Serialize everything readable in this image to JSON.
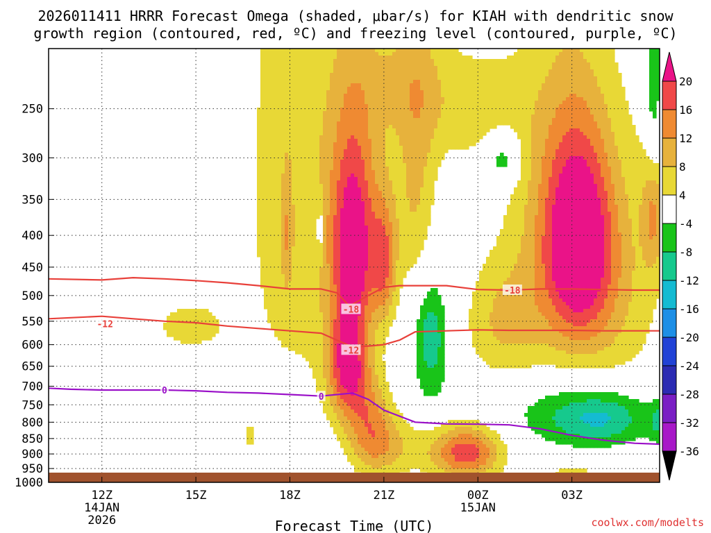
{
  "chart_data": {
    "type": "heatmap",
    "title": "2026011411 HRRR Forecast Omega (shaded, μbar/s) for KIAH with dendritic snow growth region (contoured, red, ºC) and freezing level (contoured, purple, ºC)",
    "title_lines": [
      "2026011411 HRRR Forecast Omega (shaded, μbar/s) for KIAH with dendritic snow",
      "growth region (contoured, red, ºC) and freezing level (contoured, purple, ºC)"
    ],
    "xlabel": "Forecast Time (UTC)",
    "ylabel": "",
    "credit": "coolwx.com/modelts",
    "x_range": [
      10.3,
      29.8
    ],
    "y_range_hPa": [
      200,
      1000
    ],
    "y_ticks": [
      250,
      300,
      350,
      400,
      450,
      500,
      550,
      600,
      650,
      700,
      750,
      800,
      850,
      900,
      950,
      1000
    ],
    "x_ticks": [
      {
        "t": 12,
        "label": "12Z",
        "sub": [
          "14JAN",
          "2026"
        ]
      },
      {
        "t": 15,
        "label": "15Z",
        "sub": []
      },
      {
        "t": 18,
        "label": "18Z",
        "sub": []
      },
      {
        "t": 21,
        "label": "21Z",
        "sub": []
      },
      {
        "t": 24,
        "label": "00Z",
        "sub": [
          "15JAN"
        ]
      },
      {
        "t": 27,
        "label": "03Z",
        "sub": []
      }
    ],
    "colorbar": {
      "labels": [
        "20",
        "16",
        "12",
        "8",
        "4",
        "-4",
        "-8",
        "-12",
        "-16",
        "-20",
        "-24",
        "-28",
        "-32",
        "-36"
      ],
      "colors": [
        "#ea1388",
        "#f04848",
        "#ef8a32",
        "#e7b23c",
        "#e8d836",
        "#ffffff",
        "#19c419",
        "#16c98d",
        "#14bbd2",
        "#1d8fe6",
        "#2142d6",
        "#2b2bb3",
        "#7a1ec4",
        "#a818c8",
        "#a8a8a8"
      ]
    },
    "omega_levels": [
      4,
      8,
      12,
      16,
      20
    ],
    "omega_colors": [
      "#e8d836",
      "#e7b23c",
      "#ef8a32",
      "#f04848",
      "#ea1388"
    ],
    "omega_blobs": [
      {
        "t": 18.2,
        "p": 340,
        "st": 1.2,
        "sp": 260,
        "a": 7
      },
      {
        "t": 19.9,
        "p": 400,
        "st": 0.55,
        "sp": 130,
        "a": 13
      },
      {
        "t": 20.1,
        "p": 450,
        "st": 0.4,
        "sp": 90,
        "a": 9
      },
      {
        "t": 21.0,
        "p": 445,
        "st": 0.28,
        "sp": 70,
        "a": 14
      },
      {
        "t": 20.4,
        "p": 330,
        "st": 0.6,
        "sp": 110,
        "a": 5
      },
      {
        "t": 22.05,
        "p": 345,
        "st": 0.5,
        "sp": 110,
        "a": 9
      },
      {
        "t": 19.8,
        "p": 650,
        "st": 0.45,
        "sp": 90,
        "a": 17
      },
      {
        "t": 20.3,
        "p": 720,
        "st": 0.5,
        "sp": 100,
        "a": 6
      },
      {
        "t": 20.6,
        "p": 800,
        "st": 0.5,
        "sp": 90,
        "a": 5
      },
      {
        "t": 20.8,
        "p": 870,
        "st": 0.6,
        "sp": 80,
        "a": 8
      },
      {
        "t": 23.7,
        "p": 900,
        "st": 0.7,
        "sp": 60,
        "a": 14
      },
      {
        "t": 22.8,
        "p": 880,
        "st": 1.4,
        "sp": 70,
        "a": 6
      },
      {
        "t": 14.8,
        "p": 560,
        "st": 0.9,
        "sp": 40,
        "a": 6
      },
      {
        "t": 16.7,
        "p": 840,
        "st": 0.12,
        "sp": 30,
        "a": 6
      },
      {
        "t": 17.9,
        "p": 400,
        "st": 0.12,
        "sp": 60,
        "a": 6
      },
      {
        "t": 21.6,
        "p": 220,
        "st": 1.0,
        "sp": 40,
        "a": 6
      },
      {
        "t": 23.8,
        "p": 250,
        "st": 1.2,
        "sp": 40,
        "a": 6
      },
      {
        "t": 27.2,
        "p": 410,
        "st": 0.75,
        "sp": 110,
        "a": 21
      },
      {
        "t": 26.3,
        "p": 370,
        "st": 1.0,
        "sp": 170,
        "a": 7
      },
      {
        "t": 28.2,
        "p": 470,
        "st": 1.2,
        "sp": 170,
        "a": 8
      },
      {
        "t": 24.8,
        "p": 550,
        "st": 0.9,
        "sp": 90,
        "a": 8
      },
      {
        "t": 29.6,
        "p": 360,
        "st": 0.25,
        "sp": 60,
        "a": 12
      },
      {
        "t": 27.0,
        "p": 965,
        "st": 0.6,
        "sp": 25,
        "a": 6
      }
    ],
    "omega_neg_blobs": [
      {
        "t": 22.5,
        "p": 590,
        "st": 0.45,
        "sp": 130,
        "a": -8
      },
      {
        "t": 22.5,
        "p": 580,
        "st": 0.25,
        "sp": 50,
        "a": -4
      },
      {
        "t": 27.3,
        "p": 780,
        "st": 1.6,
        "sp": 70,
        "a": -9
      },
      {
        "t": 28.0,
        "p": 790,
        "st": 0.9,
        "sp": 50,
        "a": -6
      },
      {
        "t": 29.8,
        "p": 800,
        "st": 0.25,
        "sp": 45,
        "a": -7
      },
      {
        "t": 29.6,
        "p": 240,
        "st": 0.2,
        "sp": 80,
        "a": -9
      },
      {
        "t": 24.8,
        "p": 300,
        "st": 0.4,
        "sp": 20,
        "a": -9
      },
      {
        "t": 18.95,
        "p": 390,
        "st": 0.06,
        "sp": 30,
        "a": -9
      }
    ],
    "isotherm_minus12": {
      "label": "-12",
      "label_pos": [
        12.1,
        555
      ],
      "label2_pos": [
        19.95,
        612
      ],
      "t": [
        10.3,
        12,
        13,
        14,
        15,
        16,
        17,
        18,
        19,
        19.5,
        20,
        20.5,
        21,
        21.5,
        22,
        23,
        24,
        25,
        26,
        27,
        28,
        29,
        29.8
      ],
      "p": [
        545,
        540,
        545,
        550,
        553,
        560,
        565,
        570,
        575,
        590,
        605,
        603,
        600,
        590,
        572,
        570,
        568,
        569,
        569,
        569,
        570,
        570,
        570
      ]
    },
    "isotherm_minus18": {
      "label": "-18",
      "label_pos": [
        19.95,
        526
      ],
      "label2_pos": [
        25.1,
        490
      ],
      "t": [
        10.3,
        12,
        13,
        14,
        15,
        16,
        17,
        18,
        19,
        19.5,
        19.9,
        20.5,
        21,
        21.5,
        22,
        23,
        24,
        25,
        26,
        27,
        28,
        29,
        29.8
      ],
      "p": [
        470,
        472,
        468,
        470,
        473,
        477,
        482,
        488,
        488,
        495,
        520,
        500,
        485,
        482,
        482,
        482,
        489,
        490,
        488,
        488,
        489,
        490,
        490
      ]
    },
    "freezing_level": {
      "label": "0",
      "label_pos": [
        14.0,
        710
      ],
      "label2_pos": [
        19.0,
        727
      ],
      "t": [
        10.3,
        11,
        12,
        13,
        14,
        15,
        16,
        17,
        18,
        19,
        20,
        20.5,
        21,
        22,
        23,
        24,
        25,
        26,
        27,
        28,
        29,
        29.8
      ],
      "p": [
        705,
        708,
        710,
        710,
        710,
        712,
        716,
        718,
        722,
        726,
        718,
        735,
        765,
        800,
        805,
        806,
        808,
        820,
        840,
        855,
        865,
        868
      ]
    }
  }
}
